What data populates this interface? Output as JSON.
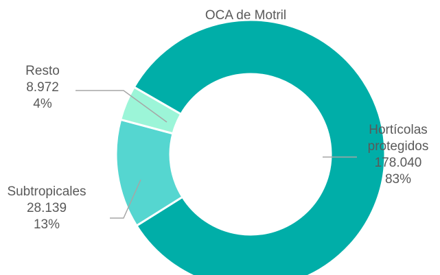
{
  "chart_data": {
    "type": "donut",
    "title": "OCA de Motril",
    "categories": [
      "Hortícolas protegidos",
      "Subtropicales",
      "Resto"
    ],
    "values": [
      178040,
      28139,
      8972
    ],
    "value_labels": [
      "178.040",
      "28.139",
      "8.972"
    ],
    "percent_labels": [
      "83%",
      "13%",
      "4%"
    ],
    "colors": [
      "#00aea8",
      "#55d6d0",
      "#9cf5d8"
    ]
  }
}
